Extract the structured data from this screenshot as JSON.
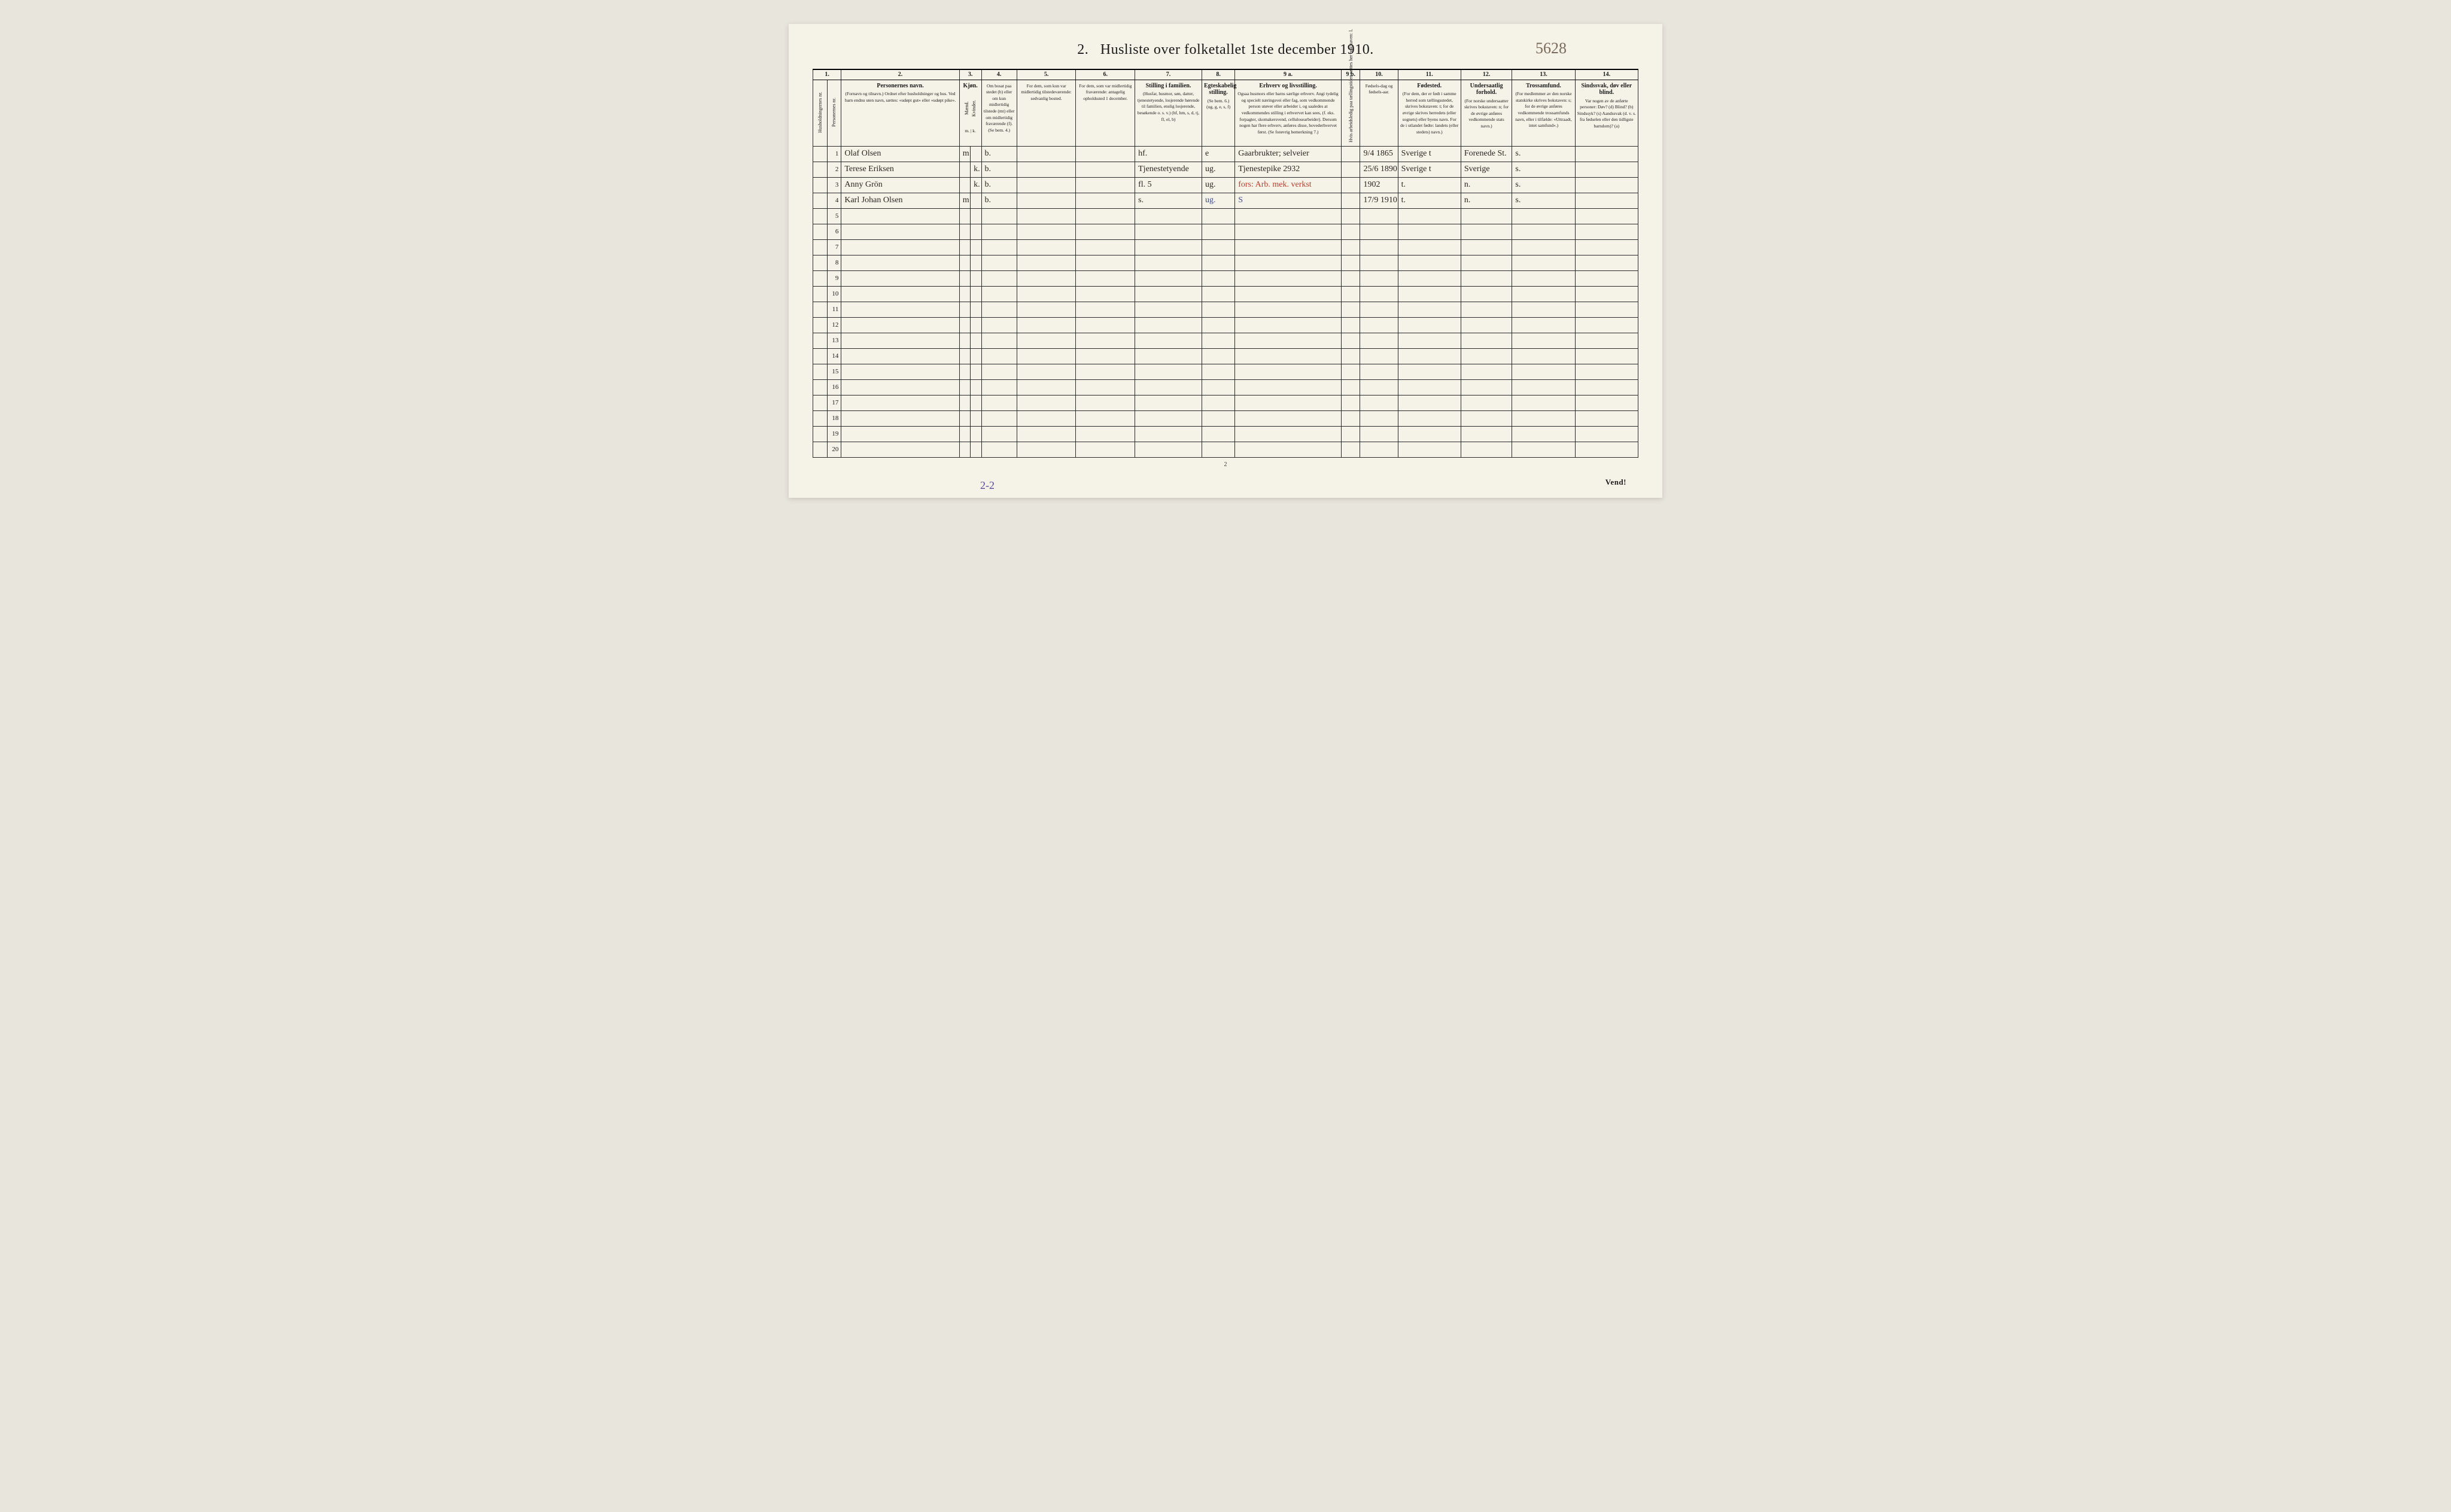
{
  "page": {
    "title_prefix": "2.",
    "title": "Husliste over folketallet 1ste december 1910.",
    "handwritten_top": "5628",
    "footer_page_num": "2",
    "vend": "Vend!",
    "handwritten_bottom": "2-2",
    "background_color": "#f5f2e8",
    "ink_color": "#1a1a1a",
    "red_ink": "#c0392b",
    "blue_ink": "#3b4a8a"
  },
  "columns": {
    "numbers": [
      "1.",
      "2.",
      "3.",
      "4.",
      "5.",
      "6.",
      "7.",
      "8.",
      "9 a.",
      "9 b.",
      "10.",
      "11.",
      "12.",
      "13.",
      "14."
    ],
    "widths_pct": [
      2,
      2,
      16,
      1.5,
      1.5,
      4.5,
      8,
      8,
      9,
      4.5,
      14,
      2.5,
      5,
      8,
      7,
      8,
      8
    ],
    "headers": {
      "c1a": "Husholdningernes nr.",
      "c1b": "Personernes nr.",
      "c2_title": "Personernes navn.",
      "c2_sub": "(Fornavn og tilnavn.)\nOrdnet efter husholdninger og hus.\nVed barn endnu uten navn, sættes: «udøpt gut» eller «udøpt pike».",
      "c3_title": "Kjøn.",
      "c3_m": "Mænd.",
      "c3_k": "Kvinder.",
      "c3_mk": "m. | k.",
      "c4": "Om bosat paa stedet (b) eller om kun midlertidig tilstede (mt) eller om midlertidig fraværende (f). (Se bem. 4.)",
      "c5": "For dem, som kun var midlertidig tilstedeværende:\nsedvanlig bosted.",
      "c6": "For dem, som var midlertidig fraværende:\nantagelig opholdssted 1 december.",
      "c7_title": "Stilling i familien.",
      "c7_sub": "(Husfar, husmor, søn, datter, tjenestetyende, losjerende hørende til familien, enslig losjerende, besøkende o. s. v.)\n(hf, hm, s, d, tj, fl, el, b)",
      "c8_title": "Egteskabelig stilling.",
      "c8_sub": "(Se bem. 6.)\n(ug, g, e, s, f)",
      "c9a_title": "Erhverv og livsstilling.",
      "c9a_sub": "Ogsaa husmors eller barns særlige erhverv. Angi tydelig og specielt næringsvei eller fag, som vedkommende person utøver eller arbeider i, og saaledes at vedkommendes stilling i erhvervet kan sees, (f. eks. forpagter, skomakersvend, cellulosearbeider). Dersom nogen har flere erhverv, anføres disse, hovederhvervet først. (Se forøvrig bemerkning 7.)",
      "c9b": "Hvis arbeidsledig paa tællingstiden sættes her bokstaven: l.",
      "c10": "Fødsels-dag og fødsels-aar.",
      "c11_title": "Fødested.",
      "c11_sub": "(For dem, der er født i samme herred som tællingsstedet, skrives bokstaven: t; for de øvrige skrives herredets (eller sognets) eller byens navn. For de i utlandet fødte: landets (eller stedets) navn.)",
      "c12_title": "Undersaatlig forhold.",
      "c12_sub": "(For norske undersaatter skrives bokstaven: n; for de øvrige anføres vedkommende stats navn.)",
      "c13_title": "Trossamfund.",
      "c13_sub": "(For medlemmer av den norske statskirke skrives bokstaven: s; for de øvrige anføres vedkommende trossamfunds navn, eller i tilfælde: «Uttraadt, intet samfund».)",
      "c14_title": "Sindssvak, døv eller blind.",
      "c14_sub": "Var nogen av de anførte personer:\nDøv? (d)\nBlind? (b)\nSindssyk? (s)\nAandssvak (d. v. s. fra fødselen eller den tidligste barndom)? (a)"
    }
  },
  "rows": [
    {
      "n": "1",
      "name": "Olaf Olsen",
      "sex_m": "m",
      "sex_k": "",
      "res": "b.",
      "c5": "",
      "c6": "",
      "c7": "hf.",
      "c8": "e",
      "c9a": "Gaarbrukter; selveier",
      "c9b": "",
      "c10": "9/4 1865",
      "c11": "Sverige t",
      "c12": "Forenede St.",
      "c13": "s.",
      "c14": ""
    },
    {
      "n": "2",
      "name": "Terese Eriksen",
      "sex_m": "",
      "sex_k": "k.",
      "res": "b.",
      "c5": "",
      "c6": "",
      "c7": "Tjenestetyende",
      "c8": "ug.",
      "c9a": "Tjenestepike              2932",
      "c9b": "",
      "c10": "25/6 1890",
      "c11": "Sverige t",
      "c12": "Sverige",
      "c13": "s.",
      "c14": ""
    },
    {
      "n": "3",
      "name": "Anny Grön",
      "sex_m": "",
      "sex_k": "k.",
      "res": "b.",
      "c5": "",
      "c6": "",
      "c7": "fl.        5",
      "c8": "ug.",
      "c9a": "fors: Arb. mek. verkst",
      "c9a_class": "red-ink",
      "c9b": "",
      "c10": "1902",
      "c11": "t.",
      "c12": "n.",
      "c13": "s.",
      "c14": ""
    },
    {
      "n": "4",
      "name": "Karl Johan Olsen",
      "sex_m": "m",
      "sex_k": "",
      "res": "b.",
      "c5": "",
      "c6": "",
      "c7": "s.",
      "c8": "ug.",
      "c8_class": "blue-ink",
      "c9a": "S",
      "c9a_class": "blue-ink",
      "c9b": "",
      "c10": "17/9 1910",
      "c11": "t.",
      "c12": "n.",
      "c13": "s.",
      "c14": ""
    },
    {
      "n": "5"
    },
    {
      "n": "6"
    },
    {
      "n": "7"
    },
    {
      "n": "8"
    },
    {
      "n": "9"
    },
    {
      "n": "10"
    },
    {
      "n": "11"
    },
    {
      "n": "12"
    },
    {
      "n": "13"
    },
    {
      "n": "14"
    },
    {
      "n": "15"
    },
    {
      "n": "16"
    },
    {
      "n": "17"
    },
    {
      "n": "18"
    },
    {
      "n": "19"
    },
    {
      "n": "20"
    }
  ]
}
